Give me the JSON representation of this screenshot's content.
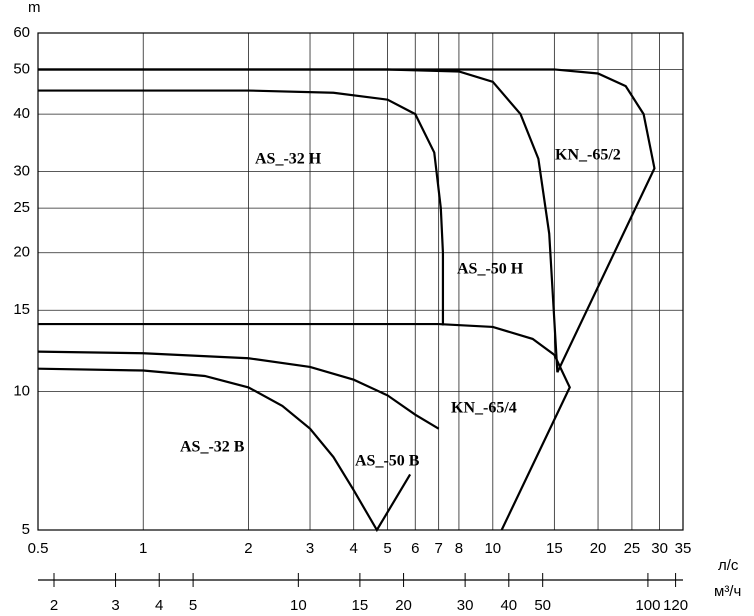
{
  "chart_data": {
    "type": "line",
    "y_axis_label": "m",
    "x_axis_label": "л/с",
    "x2_axis_label": "м³/ч",
    "log_x": true,
    "log_y": true,
    "grid": true,
    "xlim": [
      0.5,
      35
    ],
    "xticks": [
      0.5,
      1,
      2,
      3,
      4,
      5,
      6,
      7,
      8,
      10,
      15,
      20,
      25,
      30,
      35
    ],
    "ylim": [
      5,
      60
    ],
    "yticks": [
      5,
      10,
      15,
      20,
      25,
      30,
      40,
      50,
      60
    ],
    "x2lim": [
      1.8,
      126
    ],
    "x2ticks": [
      2,
      3,
      4,
      5,
      10,
      15,
      20,
      30,
      40,
      50,
      100,
      120
    ],
    "series": [
      {
        "name": "AS_-32 H",
        "color": "#000000",
        "x": [
          0.5,
          2,
          3.5,
          5,
          6,
          6.8,
          7.1,
          7.2,
          7.2
        ],
        "values": [
          45,
          45,
          44.5,
          43,
          40,
          33,
          25,
          20,
          13.9
        ]
      },
      {
        "name": "AS_-50 H",
        "color": "#000000",
        "x": [
          0.5,
          5,
          8,
          10,
          12,
          13.5,
          14.5,
          15.3
        ],
        "values": [
          50,
          50,
          49.5,
          47,
          40,
          32,
          22,
          11
        ]
      },
      {
        "name": "KN_-65/2",
        "color": "#000000",
        "x": [
          0.5,
          15,
          20,
          24,
          27,
          29,
          15.3
        ],
        "values": [
          50,
          50,
          49,
          46,
          40,
          30.5,
          11
        ]
      },
      {
        "name": "KN_-65/4",
        "color": "#000000",
        "x": [
          0.5,
          7,
          10,
          13,
          15,
          16.6,
          10.6
        ],
        "values": [
          14,
          14,
          13.8,
          13,
          12,
          10.2,
          5
        ]
      },
      {
        "name": "AS_-32 B",
        "color": "#000000",
        "x": [
          0.5,
          1,
          1.5,
          2,
          2.5,
          3,
          3.5,
          4,
          4.66,
          5.8
        ],
        "values": [
          11.2,
          11.1,
          10.8,
          10.2,
          9.3,
          8.3,
          7.2,
          6.1,
          5,
          6.6
        ]
      },
      {
        "name": "AS_-50 B",
        "color": "#000000",
        "x": [
          0.5,
          1,
          2,
          3,
          4,
          5,
          6,
          7
        ],
        "values": [
          12.2,
          12.1,
          11.8,
          11.3,
          10.6,
          9.8,
          8.9,
          8.3
        ]
      }
    ]
  }
}
